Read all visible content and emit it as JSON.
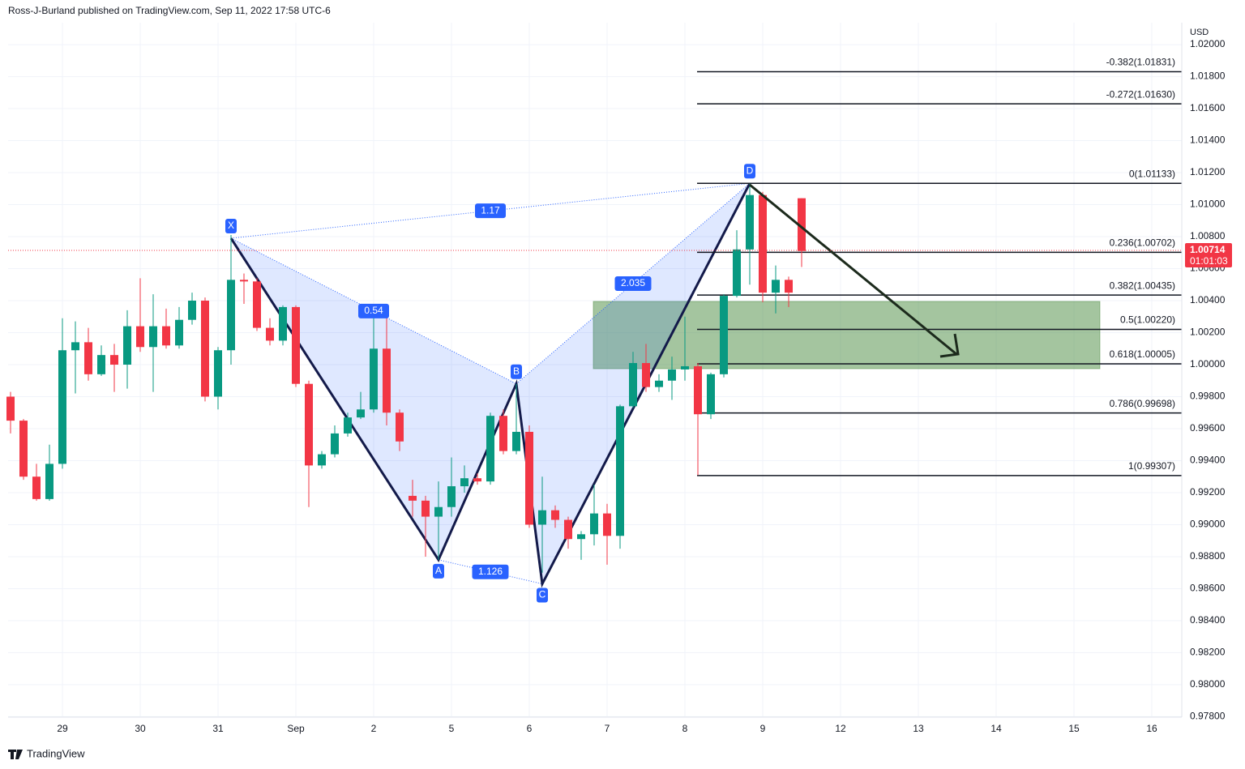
{
  "header": "Ross-J-Burland published on TradingView.com, Sep 11, 2022 17:58 UTC-6",
  "footer": "TradingView",
  "chart_data": {
    "type": "candlestick",
    "axis_unit": "USD",
    "up_color": "#089981",
    "down_color": "#f23645",
    "xlim": [
      -0.1875,
      90.3125
    ],
    "xticks": [
      {
        "value": 4,
        "label": "29"
      },
      {
        "value": 10,
        "label": "30"
      },
      {
        "value": 16,
        "label": "31"
      },
      {
        "value": 22,
        "label": "Sep"
      },
      {
        "value": 28,
        "label": "2"
      },
      {
        "value": 34,
        "label": "5"
      },
      {
        "value": 40,
        "label": "6"
      },
      {
        "value": 46,
        "label": "7"
      },
      {
        "value": 52,
        "label": "8"
      },
      {
        "value": 58,
        "label": "9"
      },
      {
        "value": 64,
        "label": "12"
      },
      {
        "value": 70,
        "label": "13"
      },
      {
        "value": 76,
        "label": "14"
      },
      {
        "value": 82,
        "label": "15"
      },
      {
        "value": 88,
        "label": "16"
      }
    ],
    "ylim": [
      0.97797,
      1.02127
    ],
    "yticks": [
      {
        "value": 0.978,
        "label": "0.97800"
      },
      {
        "value": 0.98,
        "label": "0.98000"
      },
      {
        "value": 0.982,
        "label": "0.98200"
      },
      {
        "value": 0.984,
        "label": "0.98400"
      },
      {
        "value": 0.986,
        "label": "0.98600"
      },
      {
        "value": 0.988,
        "label": "0.98800"
      },
      {
        "value": 0.99,
        "label": "0.99000"
      },
      {
        "value": 0.992,
        "label": "0.99200"
      },
      {
        "value": 0.994,
        "label": "0.99400"
      },
      {
        "value": 0.996,
        "label": "0.99600"
      },
      {
        "value": 0.998,
        "label": "0.99800"
      },
      {
        "value": 1.0,
        "label": "1.00000"
      },
      {
        "value": 1.002,
        "label": "1.00200"
      },
      {
        "value": 1.004,
        "label": "1.00400"
      },
      {
        "value": 1.006,
        "label": "1.00600"
      },
      {
        "value": 1.008,
        "label": "1.00800"
      },
      {
        "value": 1.01,
        "label": "1.01000"
      },
      {
        "value": 1.012,
        "label": "1.01200"
      },
      {
        "value": 1.014,
        "label": "1.01400"
      },
      {
        "value": 1.016,
        "label": "1.01600"
      },
      {
        "value": 1.018,
        "label": "1.01800"
      },
      {
        "value": 1.02,
        "label": "1.02000"
      }
    ],
    "grid": true,
    "open": [
      0.998,
      0.9965,
      0.993,
      0.9916,
      0.9938,
      1.0009,
      1.0014,
      0.9994,
      1.0006,
      1.0,
      1.0024,
      1.0011,
      1.0024,
      1.0012,
      1.0028,
      1.004,
      0.998,
      1.0009,
      1.0053,
      1.0052,
      1.0023,
      1.0015,
      1.0036,
      0.9988,
      0.9937,
      0.9944,
      0.9957,
      0.9967,
      0.9972,
      1.001,
      0.997,
      0.9918,
      0.9915,
      0.9905,
      0.9911,
      0.9924,
      0.9929,
      0.9927,
      0.9968,
      0.9946,
      0.9958,
      0.99,
      0.9909,
      0.9903,
      0.9891,
      0.9894,
      0.9907,
      0.9893,
      0.9974,
      1.0001,
      0.9986,
      0.999,
      0.9997,
      0.9999,
      0.9969,
      0.9994,
      1.0043,
      1.0072,
      1.0106,
      1.0045,
      1.0053,
      1.0104
    ],
    "high": [
      0.9983,
      0.9966,
      0.9938,
      0.995,
      1.0029,
      1.0027,
      1.0023,
      1.0012,
      1.0013,
      1.0034,
      1.0054,
      1.0044,
      1.0035,
      1.0036,
      1.0045,
      1.0042,
      1.0011,
      1.0081,
      1.0057,
      1.0054,
      1.0029,
      1.0037,
      1.0037,
      0.999,
      0.9946,
      0.9962,
      0.997,
      0.9983,
      1.003,
      1.003,
      0.9972,
      0.9928,
      0.9918,
      0.9927,
      0.9942,
      0.9937,
      0.9932,
      0.997,
      0.9972,
      0.9988,
      0.9962,
      0.993,
      0.9912,
      0.9905,
      0.9896,
      0.9925,
      0.9913,
      0.9975,
      1.0008,
      1.0013,
      0.9994,
      1.0005,
      1.003,
      1.0001,
      0.9995,
      1.0044,
      1.0084,
      1.0113,
      1.0108,
      1.0062,
      1.0055,
      1.0104
    ],
    "low": [
      0.9957,
      0.9928,
      0.9915,
      0.9915,
      0.9935,
      0.9982,
      0.999,
      0.9993,
      0.9983,
      0.9985,
      1.0008,
      0.9983,
      1.001,
      1.001,
      1.0025,
      0.9977,
      0.9972,
      1.0,
      1.0038,
      1.0021,
      1.0012,
      1.0012,
      0.9986,
      0.9911,
      0.9935,
      0.9942,
      0.9955,
      0.9966,
      0.997,
      0.9962,
      0.9946,
      0.9905,
      0.988,
      0.9878,
      0.9905,
      0.992,
      0.9925,
      0.9925,
      0.9944,
      0.9944,
      0.9898,
      0.987,
      0.9898,
      0.9885,
      0.9878,
      0.9887,
      0.9875,
      0.9885,
      0.9973,
      0.9983,
      0.9983,
      0.9978,
      0.999,
      0.9931,
      0.9966,
      0.9992,
      1.0042,
      1.005,
      1.0039,
      1.0032,
      1.0036,
      1.0061
    ],
    "close": [
      0.9965,
      0.993,
      0.9916,
      0.9938,
      1.0009,
      1.0014,
      0.9994,
      1.0006,
      1.0,
      1.0024,
      1.0011,
      1.0024,
      1.0012,
      1.0028,
      1.004,
      0.998,
      1.0009,
      1.0053,
      1.0052,
      1.0023,
      1.0015,
      1.0036,
      0.9988,
      0.9937,
      0.9944,
      0.9957,
      0.9967,
      0.9972,
      1.001,
      0.997,
      0.9952,
      0.9915,
      0.9905,
      0.9911,
      0.9924,
      0.9929,
      0.9927,
      0.9968,
      0.9946,
      0.9958,
      0.99,
      0.9909,
      0.9903,
      0.9891,
      0.9894,
      0.9907,
      0.9893,
      0.9974,
      1.0001,
      0.9986,
      0.999,
      0.9997,
      0.9999,
      0.9969,
      0.9994,
      1.0043,
      1.0072,
      1.0106,
      1.0045,
      1.0053,
      1.0045,
      1.0071
    ],
    "last_price": 1.00714,
    "countdown": "01:01:03",
    "pattern_points": [
      {
        "label": "X",
        "x": 17,
        "price": 1.0079
      },
      {
        "label": "A",
        "x": 33,
        "price": 0.9878
      },
      {
        "label": "B",
        "x": 39,
        "price": 0.9988
      },
      {
        "label": "C",
        "x": 41,
        "price": 0.9863
      },
      {
        "label": "D",
        "x": 57,
        "price": 1.01133
      }
    ],
    "pattern_ratios": [
      {
        "from": 0,
        "to": 4,
        "ratio": "1.17"
      },
      {
        "from": 0,
        "to": 2,
        "ratio": "0.54"
      },
      {
        "from": 2,
        "to": 4,
        "ratio": "2.035"
      },
      {
        "from": 1,
        "to": 3,
        "ratio": "1.126"
      }
    ],
    "fib_levels": [
      {
        "label": "-0.382(1.01831)",
        "price": 1.01831
      },
      {
        "label": "-0.272(1.01630)",
        "price": 1.0163
      },
      {
        "label": "0(1.01133)",
        "price": 1.01133
      },
      {
        "label": "0.236(1.00702)",
        "price": 1.00702
      },
      {
        "label": "0.382(1.00435)",
        "price": 1.00435
      },
      {
        "label": "0.5(1.00220)",
        "price": 1.0022
      },
      {
        "label": "0.618(1.00005)",
        "price": 1.00005
      },
      {
        "label": "0.786(0.99698)",
        "price": 0.99698
      },
      {
        "label": "1(0.99307)",
        "price": 0.99307
      }
    ]
  }
}
